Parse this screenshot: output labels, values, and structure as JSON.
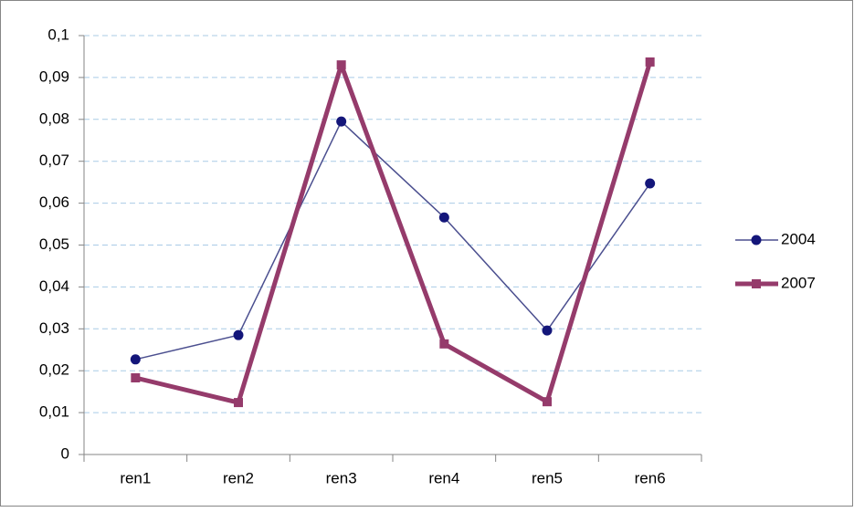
{
  "chart_data": {
    "type": "line",
    "categories": [
      "ren1",
      "ren2",
      "ren3",
      "ren4",
      "ren5",
      "ren6"
    ],
    "series": [
      {
        "name": "2004",
        "color": "#4b4f8f",
        "marker_color": "#14167a",
        "marker": "circle",
        "line_width": 1.5,
        "values": [
          0.0227,
          0.0285,
          0.0795,
          0.0566,
          0.0296,
          0.0647
        ]
      },
      {
        "name": "2007",
        "color": "#953b6b",
        "marker_color": "#953b6b",
        "marker": "square",
        "line_width": 5,
        "values": [
          0.0183,
          0.0124,
          0.093,
          0.0264,
          0.0126,
          0.0937
        ]
      }
    ],
    "ylim": [
      0,
      0.1
    ],
    "yticks": [
      0,
      {
        "value": 0.01,
        "label": "0,01"
      },
      {
        "value": 0.02,
        "label": "0,02"
      },
      {
        "value": 0.03,
        "label": "0,03"
      },
      {
        "value": 0.04,
        "label": "0,04"
      },
      {
        "value": 0.05,
        "label": "0,05"
      },
      {
        "value": 0.06,
        "label": "0,06"
      },
      {
        "value": 0.07,
        "label": "0,07"
      },
      {
        "value": 0.08,
        "label": "0,08"
      },
      {
        "value": 0.09,
        "label": "0,09"
      },
      {
        "value": 0.1,
        "label": "0,1"
      }
    ],
    "grid": true,
    "legend": "right"
  }
}
